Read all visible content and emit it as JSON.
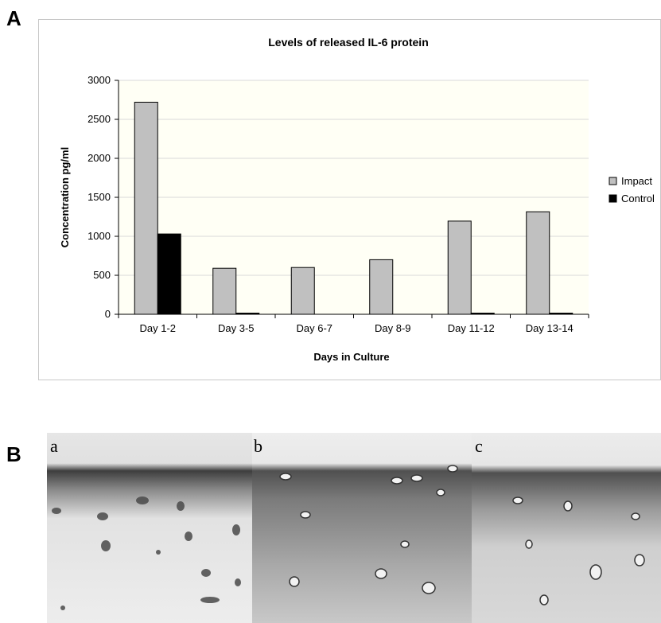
{
  "panels": {
    "a_label": "A",
    "b_label": "B"
  },
  "micrograph_labels": [
    "a",
    "b",
    "c"
  ],
  "colors": {
    "impact": "#c0c0c0",
    "control": "#000000",
    "plot_bg": "#fffff5",
    "grid": "#d9d9d9"
  },
  "chart_data": {
    "type": "bar",
    "title": "Levels of released IL-6 protein",
    "xlabel": "Days in Culture",
    "ylabel": "Concentration pg/ml",
    "categories": [
      "Day 1-2",
      "Day 3-5",
      "Day 6-7",
      "Day 8-9",
      "Day 11-12",
      "Day 13-14"
    ],
    "series": [
      {
        "name": "Impact",
        "values": [
          2720,
          590,
          600,
          700,
          1195,
          1315
        ]
      },
      {
        "name": "Control",
        "values": [
          1030,
          15,
          0,
          0,
          15,
          15
        ]
      }
    ],
    "ylim": [
      0,
      3000
    ],
    "yticks": [
      0,
      500,
      1000,
      1500,
      2000,
      2500,
      3000
    ],
    "grid": true,
    "legend_position": "right"
  }
}
